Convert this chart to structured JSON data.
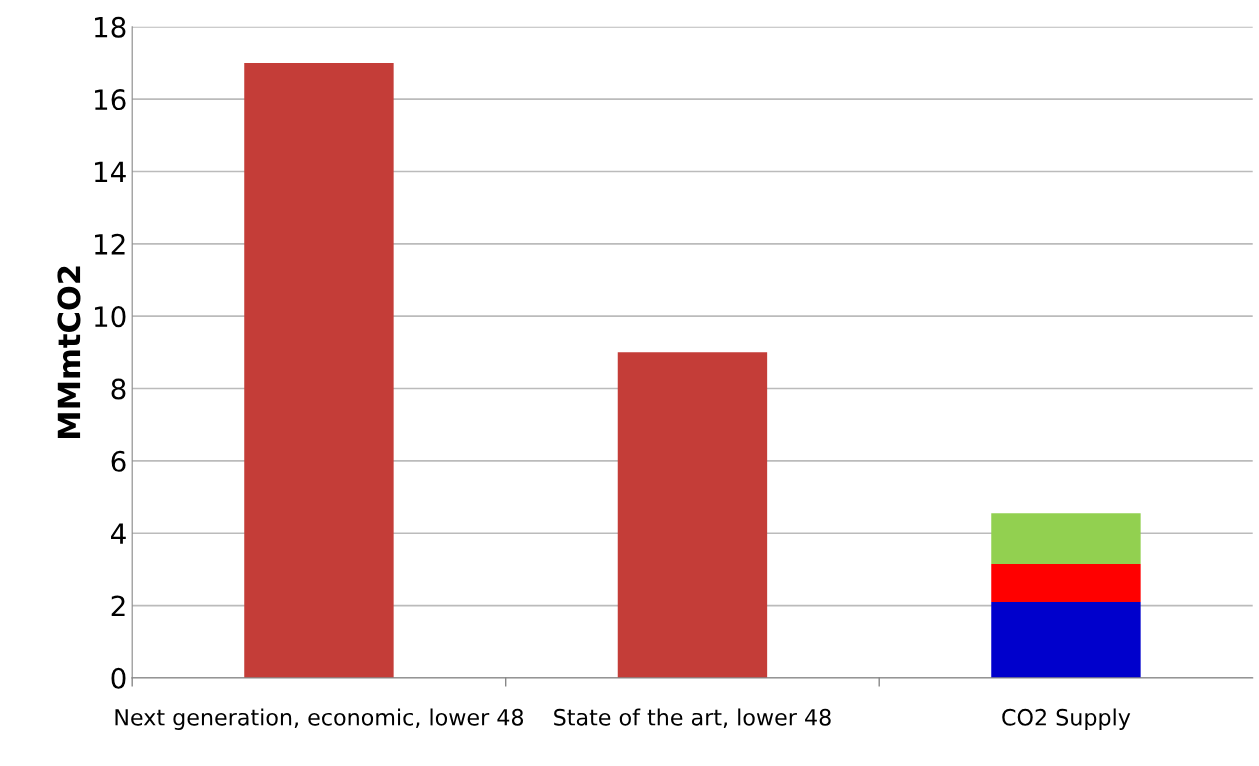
{
  "chart_data": {
    "type": "bar",
    "stacked": true,
    "ylabel": "MMmtCO2",
    "categories": [
      "Next generation, economic, lower 48",
      "State of the art, lower 48",
      "CO2 Supply"
    ],
    "series": [
      {
        "colors": [
          "#c43d38",
          "#c43d38",
          "#0000cc"
        ],
        "values": [
          17,
          9,
          2.1
        ]
      },
      {
        "color": "#ff0000",
        "values": [
          null,
          null,
          1.05
        ]
      },
      {
        "color": "#92d050",
        "values": [
          null,
          null,
          1.4
        ]
      }
    ],
    "ylim": [
      0,
      18
    ],
    "yticks": [
      0,
      2,
      4,
      6,
      8,
      10,
      12,
      14,
      16,
      18
    ],
    "grid": "y",
    "legend": false
  }
}
